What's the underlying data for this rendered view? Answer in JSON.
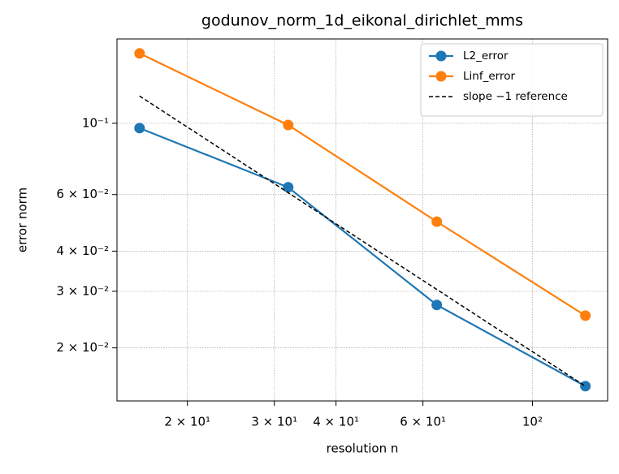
{
  "chart_data": {
    "type": "line",
    "title": "godunov_norm_1d_eikonal_dirichlet_mms",
    "x_label": "resolution n",
    "y_label": "error norm",
    "x": [
      16,
      32,
      64,
      128
    ],
    "series": [
      {
        "name": "L2_error",
        "color": "#1f77b4",
        "marker": "circle",
        "dash": "solid",
        "values": [
          0.0966,
          0.0632,
          0.0272,
          0.0152
        ]
      },
      {
        "name": "Linf_error",
        "color": "#ff7f0e",
        "marker": "circle",
        "dash": "solid",
        "values": [
          0.165,
          0.0988,
          0.0494,
          0.0252
        ]
      },
      {
        "name": "slope −1 reference",
        "color": "#000000",
        "marker": "none",
        "dash": "dashed",
        "values": [
          0.1216,
          0.0608,
          0.0304,
          0.0152
        ]
      }
    ],
    "xscale": "log",
    "yscale": "log",
    "xlim": [
      14.4,
      142
    ],
    "ylim": [
      0.01367,
      0.183
    ],
    "xticks": [
      {
        "value": 20,
        "label": "2 × 10¹"
      },
      {
        "value": 30,
        "label": "3 × 10¹"
      },
      {
        "value": 40,
        "label": "4 × 10¹"
      },
      {
        "value": 60,
        "label": "6 × 10¹"
      },
      {
        "value": 100,
        "label": "10²"
      }
    ],
    "yticks": [
      {
        "value": 0.1,
        "label": "10⁻¹"
      },
      {
        "value": 0.06,
        "label": "6 × 10⁻²"
      },
      {
        "value": 0.04,
        "label": "4 × 10⁻²"
      },
      {
        "value": 0.03,
        "label": "3 × 10⁻²"
      },
      {
        "value": 0.02,
        "label": "2 × 10⁻²"
      }
    ],
    "grid": true,
    "legend": "upper-right"
  }
}
